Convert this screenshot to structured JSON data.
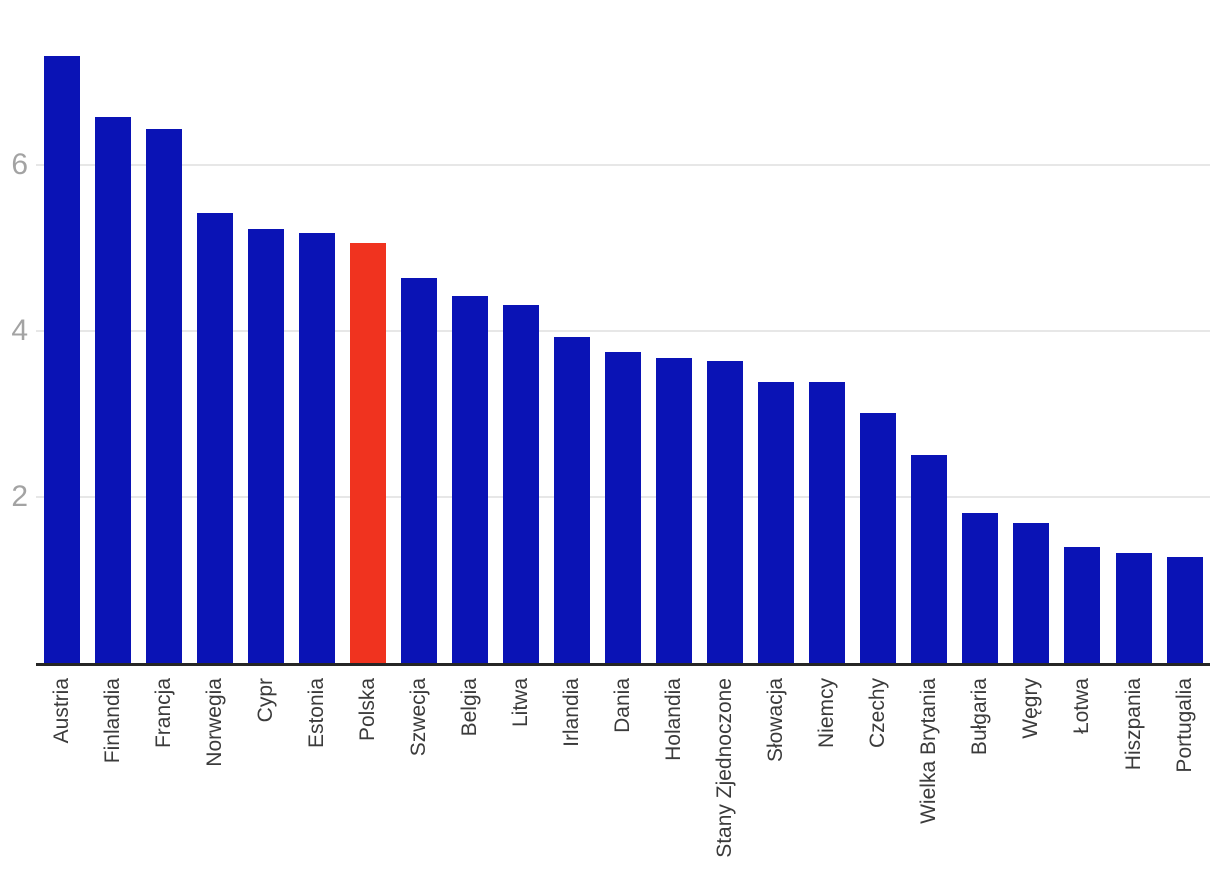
{
  "chart_data": {
    "type": "bar",
    "title": "",
    "xlabel": "",
    "ylabel": "",
    "categories": [
      "Austria",
      "Finlandia",
      "Francja",
      "Norwegia",
      "Cypr",
      "Estonia",
      "Polska",
      "Szwecja",
      "Belgia",
      "Litwa",
      "Irlandia",
      "Dania",
      "Holandia",
      "Stany Zjednoczone",
      "Słowacja",
      "Niemcy",
      "Czechy",
      "Wielka Brytania",
      "Bułgaria",
      "Węgry",
      "Łotwa",
      "Hiszpania",
      "Portugalia"
    ],
    "values": [
      7.32,
      6.58,
      6.43,
      5.42,
      5.23,
      5.18,
      5.06,
      4.64,
      4.42,
      4.32,
      3.93,
      3.75,
      3.67,
      3.64,
      3.39,
      3.39,
      3.01,
      2.51,
      1.81,
      1.69,
      1.4,
      1.32,
      1.28
    ],
    "highlight": {
      "category": "Polska",
      "color": "#f0331f"
    },
    "bar_color": "#0a13b5",
    "yticks": [
      2,
      4,
      6
    ],
    "ylim": [
      0,
      7.99
    ],
    "grid": "horizontal",
    "legend": false,
    "colors": {
      "axis_line": "#262626",
      "grid_line": "#e7e7e7",
      "ytick_label": "#a3a3a3",
      "xtick_label": "#3b3b3b",
      "background": "#ffffff"
    }
  }
}
